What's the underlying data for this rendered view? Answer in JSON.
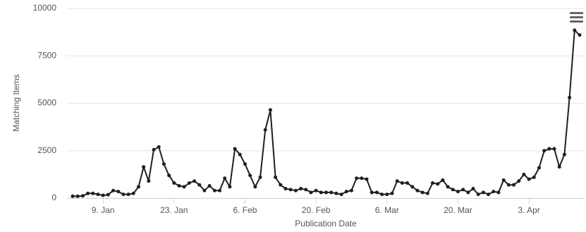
{
  "chart_data": {
    "type": "line",
    "y_label": "Matching Items",
    "x_label": "Publication Date",
    "categories": [
      null,
      null,
      null,
      null,
      null,
      null,
      "9. Jan",
      null,
      null,
      null,
      null,
      null,
      null,
      null,
      null,
      null,
      null,
      null,
      null,
      null,
      "23. Jan",
      null,
      null,
      null,
      null,
      null,
      null,
      null,
      null,
      null,
      null,
      null,
      null,
      null,
      "6. Feb",
      null,
      null,
      null,
      null,
      null,
      null,
      null,
      null,
      null,
      null,
      null,
      null,
      null,
      "20. Feb",
      null,
      null,
      null,
      null,
      null,
      null,
      null,
      null,
      null,
      null,
      null,
      null,
      null,
      "6. Mar",
      null,
      null,
      null,
      null,
      null,
      null,
      null,
      null,
      null,
      null,
      null,
      null,
      null,
      "20. Mar",
      null,
      null,
      null,
      null,
      null,
      null,
      null,
      null,
      null,
      null,
      null,
      null,
      null,
      "3. Apr",
      null,
      null,
      null,
      null,
      null,
      null,
      null,
      null,
      null,
      null
    ],
    "series": [
      {
        "name": "Matching Items",
        "color": "#1f1f1f",
        "values": [
          100,
          100,
          120,
          250,
          250,
          200,
          150,
          180,
          400,
          350,
          200,
          200,
          250,
          600,
          1650,
          900,
          2550,
          2700,
          1800,
          1200,
          800,
          650,
          600,
          800,
          900,
          700,
          400,
          650,
          400,
          400,
          1050,
          600,
          2600,
          2300,
          1800,
          1200,
          600,
          1100,
          3600,
          4650,
          1100,
          700,
          500,
          450,
          400,
          500,
          450,
          300,
          400,
          300,
          300,
          300,
          250,
          200,
          350,
          400,
          1050,
          1050,
          1000,
          300,
          300,
          200,
          200,
          250,
          900,
          800,
          800,
          600,
          400,
          300,
          250,
          800,
          750,
          950,
          600,
          450,
          350,
          450,
          300,
          500,
          200,
          300,
          200,
          350,
          300,
          950,
          700,
          700,
          900,
          1250,
          1000,
          1100,
          1600,
          2500,
          2600,
          2600,
          1650,
          2300,
          5300,
          8850,
          8600
        ]
      }
    ],
    "ylim": [
      0,
      10000
    ],
    "yticks": [
      0,
      2500,
      5000,
      7500,
      10000
    ],
    "grid": true
  }
}
